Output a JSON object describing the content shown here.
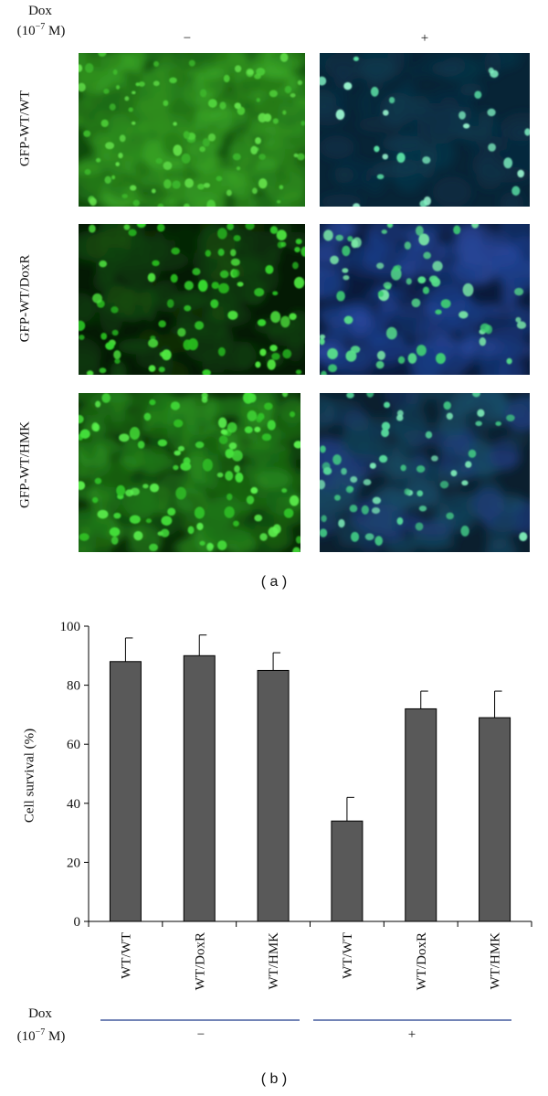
{
  "panel_a": {
    "dox_label": "Dox",
    "dox_unit_prefix": "(10",
    "dox_unit_exp": "−7",
    "dox_unit_suffix": " M)",
    "col_minus": "−",
    "col_plus": "+",
    "rows": [
      {
        "label": "GFP-WT/WT"
      },
      {
        "label": "GFP-WT/DoxR"
      },
      {
        "label": "GFP-WT/HMK"
      }
    ],
    "caption": "( a )"
  },
  "panel_b": {
    "ylabel": "Cell survival (%)",
    "dox_label": "Dox",
    "dox_unit_prefix": "(10",
    "dox_unit_exp": "−7",
    "dox_unit_suffix": " M)",
    "group_minus": "−",
    "group_plus": "+",
    "caption": "( b )"
  },
  "chart_data": {
    "type": "bar",
    "categories": [
      "WT/WT",
      "WT/DoxR",
      "WT/HMK",
      "WT/WT",
      "WT/DoxR",
      "WT/HMK"
    ],
    "values": [
      88,
      90,
      85,
      34,
      72,
      69
    ],
    "errors": [
      8,
      7,
      6,
      8,
      6,
      9
    ],
    "groups": [
      "−",
      "−",
      "−",
      "+",
      "+",
      "+"
    ],
    "ylabel": "Cell survival (%)",
    "ylim": [
      0,
      100
    ],
    "yticks": [
      0,
      20,
      40,
      60,
      80,
      100
    ],
    "bar_color": "#595959",
    "group_line_color": "#1f3a8a"
  }
}
